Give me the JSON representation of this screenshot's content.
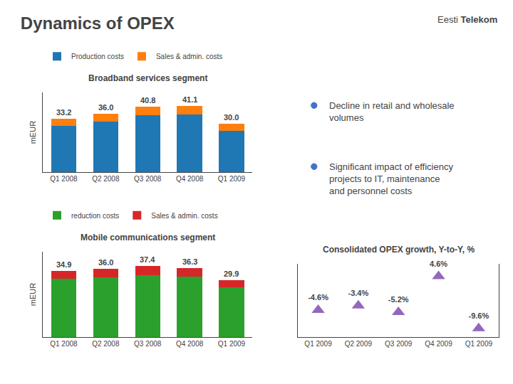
{
  "title": "Dynamics of OPEX",
  "annotations": [
    {
      "text": "Eesti"
    },
    {
      "text": "Telekom"
    },
    {
      "text": "Decline in retail and wholesale\nvolumes",
      "marker": "circle",
      "color": "#4472C4"
    },
    {
      "text": "Significant impact of efficiency\nprojects to IT, maintenance\nand personnel costs",
      "marker": "circle",
      "color": "#4472C4"
    }
  ],
  "chart_data": [
    {
      "type": "bar",
      "stacked": true,
      "title": "Broadband services segment",
      "categories": [
        "Q1 2008",
        "Q2 2008",
        "Q3 2008",
        "Q4 2008",
        "Q1 2009"
      ],
      "series": [
        {
          "name": "Production costs",
          "values": [
            28.5,
            31.2,
            35.5,
            35.8,
            25.8
          ]
        },
        {
          "name": "Sales & admin. costs",
          "values": [
            4.7,
            4.8,
            5.3,
            5.3,
            4.2
          ]
        }
      ],
      "totals": [
        33.2,
        36.0,
        40.8,
        41.1,
        30.0
      ],
      "total_labels": [
        "33.2",
        "36.0",
        "40.8",
        "41.1",
        "30.0"
      ],
      "ylabel": "mEUR",
      "ylim": [
        0,
        49.32
      ],
      "yticks": [],
      "tick_labels": "x",
      "legend": "top"
    },
    {
      "type": "bar",
      "stacked": true,
      "title": "Mobile communications segment",
      "categories": [
        "Q1 2008",
        "Q2 2008",
        "Q3 2008",
        "Q4 2008",
        "Q1 2009"
      ],
      "series": [
        {
          "name": "reduction costs",
          "values": [
            30.5,
            31.5,
            32.5,
            31.8,
            26.2
          ]
        },
        {
          "name": "Sales & admin. costs",
          "values": [
            4.4,
            4.5,
            4.9,
            4.5,
            3.7
          ]
        }
      ],
      "totals": [
        34.9,
        36.0,
        37.4,
        36.3,
        29.9
      ],
      "total_labels": [
        "34.9",
        "36.0",
        "37.4",
        "36.3",
        "29.9"
      ],
      "ylabel": "mEUR",
      "ylim": [
        0,
        44.88
      ],
      "yticks": [],
      "tick_labels": "x",
      "legend": "top"
    },
    {
      "type": "scatter",
      "title": "Consolidated OPEX growth, Y-to-Y, %",
      "categories": [
        "Q1 2009",
        "Q2 2009",
        "Q3 2009",
        "Q4 2009",
        "Q1 2009"
      ],
      "values": [
        -4.6,
        -3.4,
        -5.2,
        4.6,
        -9.6
      ],
      "value_labels": [
        "-4.6%",
        "-3.4%",
        "-5.2%",
        "4.6%",
        "-9.6%"
      ],
      "data_labels": true,
      "marker": "triangle-up",
      "ylim": [
        -12,
        8
      ],
      "yticks": [],
      "tick_labels": "x"
    }
  ]
}
